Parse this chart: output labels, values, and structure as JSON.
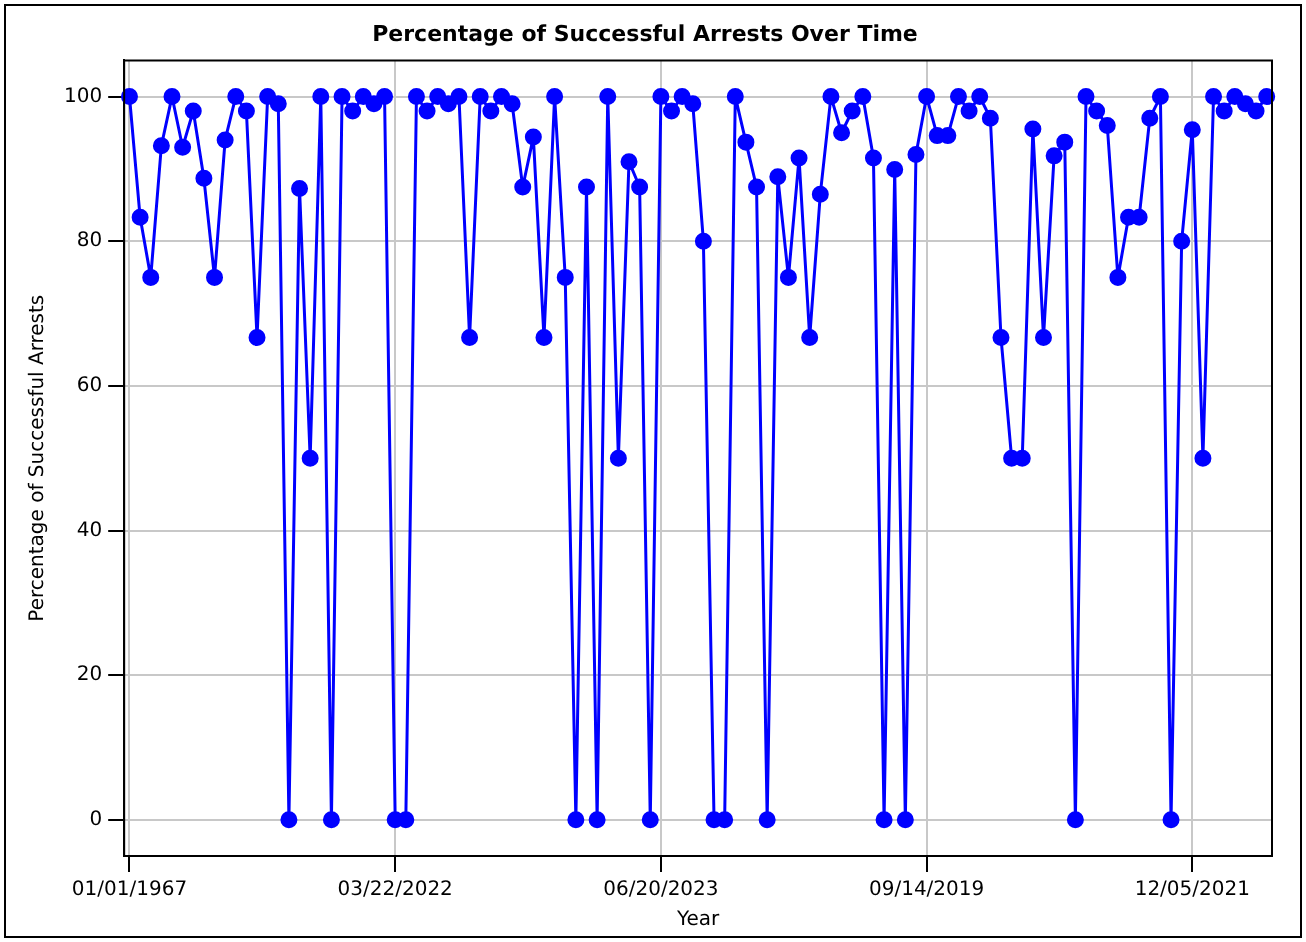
{
  "chart_data": {
    "type": "line",
    "title": "Percentage of Successful Arrests Over Time",
    "xlabel": "Year",
    "ylabel": "Percentage of Successful Arrests",
    "categories": [
      "01/01/1967",
      null,
      null,
      null,
      null,
      null,
      null,
      null,
      null,
      null,
      null,
      null,
      null,
      null,
      null,
      null,
      null,
      null,
      null,
      null,
      null,
      null,
      null,
      null,
      null,
      "03/22/2022",
      null,
      null,
      null,
      null,
      null,
      null,
      null,
      null,
      null,
      null,
      null,
      null,
      null,
      null,
      null,
      null,
      null,
      null,
      null,
      null,
      null,
      null,
      null,
      null,
      "06/20/2023",
      null,
      null,
      null,
      null,
      null,
      null,
      null,
      null,
      null,
      null,
      null,
      null,
      null,
      null,
      null,
      null,
      null,
      null,
      null,
      null,
      null,
      null,
      null,
      null,
      "09/14/2019",
      null,
      null,
      null,
      null,
      null,
      null,
      null,
      null,
      null,
      null,
      null,
      null,
      null,
      null,
      null,
      null,
      null,
      null,
      null,
      null,
      null,
      null,
      null,
      null,
      "12/05/2021",
      null,
      null,
      null,
      null,
      null,
      null,
      null
    ],
    "series": [
      {
        "color": "#0000ff",
        "values": [
          100,
          83.3,
          75,
          93.2,
          100,
          93,
          98,
          88.7,
          75,
          94,
          100,
          98,
          66.7,
          100,
          99,
          0,
          87.3,
          50,
          100,
          0,
          100,
          98,
          100,
          99,
          100,
          0,
          0,
          100,
          98,
          100,
          99,
          100,
          66.7,
          100,
          98,
          100,
          99,
          87.5,
          94.4,
          66.7,
          100,
          75,
          0,
          87.5,
          0,
          100,
          50,
          91,
          87.5,
          0,
          100,
          98,
          100,
          99,
          80,
          0,
          0,
          100,
          93.7,
          87.5,
          0,
          88.9,
          75,
          91.5,
          66.7,
          86.5,
          100,
          95,
          98,
          100,
          91.5,
          0,
          89.9,
          0,
          92,
          100,
          94.6,
          94.6,
          100,
          98,
          100,
          97,
          66.7,
          50,
          50,
          95.5,
          66.7,
          91.8,
          93.7,
          0,
          100,
          98,
          96,
          75,
          83.3,
          83.3,
          97,
          100,
          0,
          80,
          95.4,
          50,
          100,
          98,
          100,
          99,
          98,
          100
        ]
      }
    ],
    "ylim": [
      -5,
      105
    ],
    "yticks": [
      0,
      20,
      40,
      60,
      80,
      100
    ],
    "grid": true,
    "marker": "circle",
    "line_style": "solid"
  }
}
